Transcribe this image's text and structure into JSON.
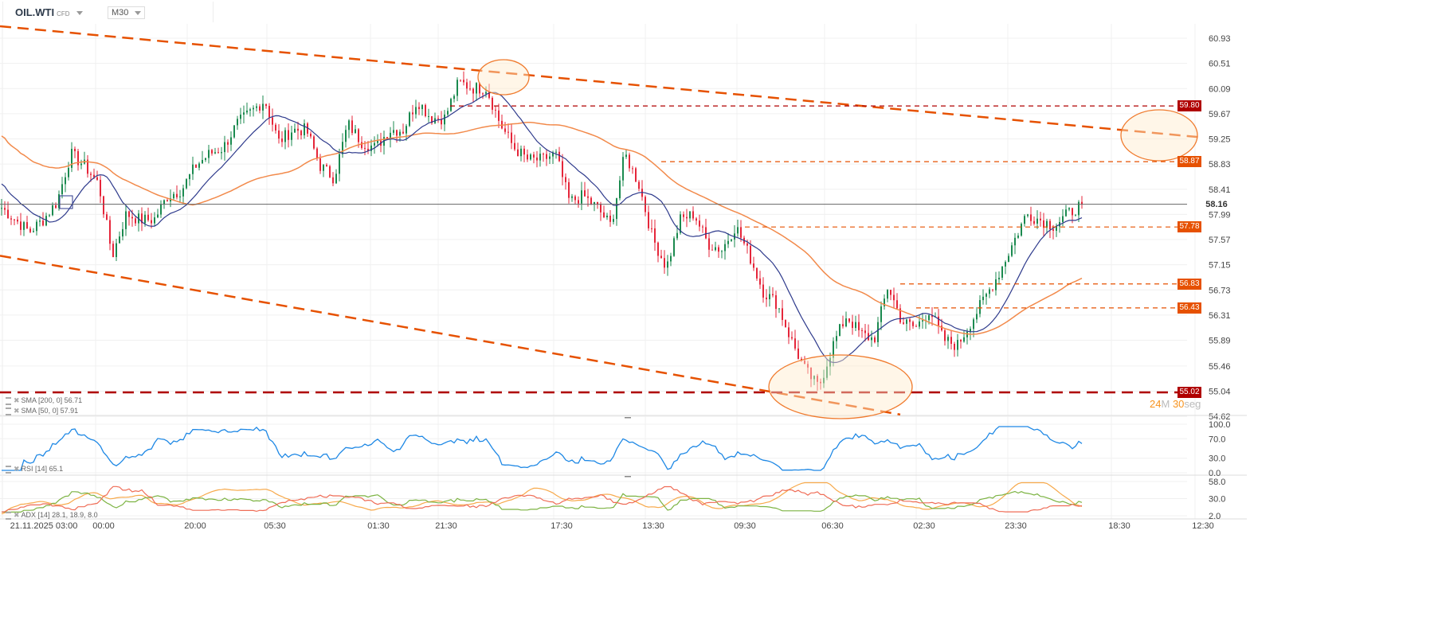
{
  "header": {
    "symbol": "OIL.WTI",
    "symbol_type": "CFD",
    "timeframe": "M30"
  },
  "timer": {
    "minutes": "24",
    "m_unit": "M",
    "seconds": "30",
    "s_unit": "seg"
  },
  "indicators": {
    "sma200": {
      "label": "SMA [200, 0]",
      "value": "56.71",
      "color": "#f28a4b"
    },
    "sma50": {
      "label": "SMA [50, 0]",
      "value": "57.91",
      "color": "#2e3a8c"
    },
    "rsi": {
      "label": "RSI [14]",
      "value": "65.1",
      "color": "#1e88e5"
    },
    "adx": {
      "label": "ADX [14]",
      "value": "28.1, 18.9, 8.0",
      "colors": [
        "#f7a94b",
        "#7cb342",
        "#ef6c56"
      ]
    }
  },
  "price_levels": [
    {
      "value": "59.80",
      "color": "#b00000"
    },
    {
      "value": "58.87",
      "color": "#e65100"
    },
    {
      "value": "58.16",
      "color": "#666666"
    },
    {
      "value": "57.78",
      "color": "#e65100"
    },
    {
      "value": "56.83",
      "color": "#e65100"
    },
    {
      "value": "56.43",
      "color": "#e65100"
    },
    {
      "value": "55.02",
      "color": "#b00000"
    }
  ],
  "chart_data": {
    "type": "candlestick",
    "y_ticks": [
      "60.93",
      "60.51",
      "60.09",
      "59.67",
      "59.25",
      "58.83",
      "58.41",
      "57.99",
      "57.57",
      "57.15",
      "56.73",
      "56.31",
      "55.89",
      "55.46",
      "55.04",
      "54.62"
    ],
    "ylim": [
      54.62,
      60.93
    ],
    "rsi_ticks": [
      "100.0",
      "70.0",
      "30.0",
      "0.0"
    ],
    "adx_ticks": [
      "58.0",
      "30.0",
      "2.0"
    ],
    "x_ticks": [
      "21.11.2025 03:00",
      "00:00",
      "20:00",
      "05:30",
      "01:30",
      "21:30",
      "17:30",
      "13:30",
      "09:30",
      "06:30",
      "02:30",
      "23:30",
      "18:30",
      "12:30"
    ],
    "grid": true,
    "current_price": 58.16,
    "close_path": [
      58.1,
      57.9,
      57.7,
      57.9,
      58.2,
      59.0,
      58.8,
      58.5,
      57.3,
      58.0,
      57.9,
      57.9,
      58.3,
      58.4,
      58.8,
      59.0,
      59.1,
      59.5,
      59.7,
      59.9,
      59.2,
      59.4,
      59.4,
      58.8,
      58.6,
      59.5,
      59.2,
      59.1,
      59.4,
      59.4,
      59.9,
      59.6,
      59.6,
      60.2,
      60.1,
      60.1,
      59.5,
      59.1,
      58.9,
      58.9,
      59.0,
      58.2,
      58.3,
      58.1,
      57.8,
      59.0,
      58.5,
      57.6,
      57.1,
      57.9,
      58.0,
      57.5,
      57.4,
      57.8,
      57.3,
      56.7,
      56.5,
      55.9,
      55.4,
      55.1,
      55.8,
      56.3,
      56.0,
      55.9,
      56.8,
      56.2,
      56.1,
      56.4,
      55.9,
      55.8,
      56.2,
      56.6,
      57.0,
      57.5,
      58.0,
      57.9,
      57.8,
      58.0,
      58.16
    ],
    "trendlines": [
      {
        "name": "upper-channel",
        "from": 61.13,
        "to": 59.28,
        "color": "#e65100"
      },
      {
        "name": "lower-channel",
        "from": 57.3,
        "to": 54.65,
        "color": "#e65100"
      }
    ],
    "up_color": "#1b8a4f",
    "down_color": "#e5263a"
  }
}
